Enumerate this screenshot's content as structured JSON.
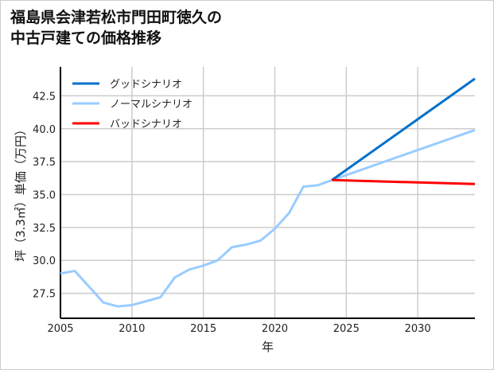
{
  "chart_data": {
    "type": "line",
    "title": [
      "福島県会津若松市門田町徳久の",
      "中古戸建ての価格推移"
    ],
    "xlabel": "年",
    "ylabel": "坪（3.3㎡）単価（万円）",
    "xlim": [
      2005,
      2034
    ],
    "ylim": [
      25.6,
      44.7
    ],
    "xticks": [
      2005,
      2010,
      2015,
      2020,
      2025,
      2030
    ],
    "yticks": [
      27.5,
      30.0,
      32.5,
      35.0,
      37.5,
      40.0,
      42.5
    ],
    "grid": true,
    "legend_position": "top-left",
    "series": [
      {
        "name": "グッドシナリオ",
        "color": "#0070cc",
        "x": [
          2024,
          2034
        ],
        "y": [
          36.1,
          43.8
        ]
      },
      {
        "name": "ノーマルシナリオ",
        "color": "#99ccff",
        "x": [
          2005,
          2006,
          2007,
          2008,
          2009,
          2010,
          2011,
          2012,
          2013,
          2014,
          2015,
          2016,
          2017,
          2018,
          2019,
          2020,
          2021,
          2022,
          2023,
          2024,
          2034
        ],
        "y": [
          29.0,
          29.2,
          28.0,
          26.8,
          26.5,
          26.6,
          26.9,
          27.2,
          28.7,
          29.3,
          29.6,
          30.0,
          31.0,
          31.2,
          31.5,
          32.4,
          33.6,
          35.6,
          35.7,
          36.1,
          39.9
        ]
      },
      {
        "name": "バッドシナリオ",
        "color": "#ff0000",
        "x": [
          2024,
          2034
        ],
        "y": [
          36.1,
          35.8
        ]
      }
    ]
  }
}
